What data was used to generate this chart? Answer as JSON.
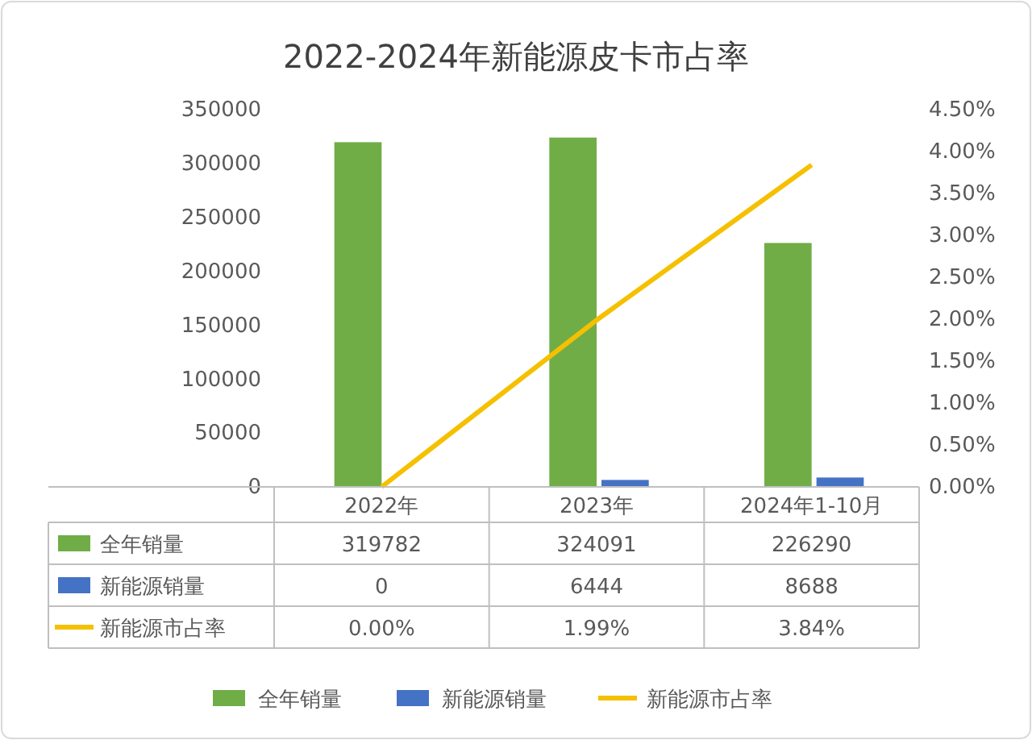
{
  "chart_data": {
    "type": "bar",
    "title": "2022-2024年新能源皮卡市占率",
    "categories": [
      "2022年",
      "2023年",
      "2024年1-10月"
    ],
    "series": [
      {
        "name": "全年销量",
        "color": "#70ad47",
        "values": [
          319782,
          324091,
          226290
        ],
        "value_labels": [
          "319782",
          "324091",
          "226290"
        ]
      },
      {
        "name": "新能源销量",
        "color": "#4472c4",
        "values": [
          0,
          6444,
          8688
        ],
        "value_labels": [
          "0",
          "6444",
          "8688"
        ]
      },
      {
        "name": "新能源市占率",
        "type": "line",
        "axis": "y2",
        "color": "#f5c000",
        "values": [
          0,
          1.99,
          3.84
        ],
        "value_labels": [
          "0.00%",
          "1.99%",
          "3.84%"
        ]
      }
    ],
    "ylim": [
      0,
      350000
    ],
    "yticks": [
      0,
      50000,
      100000,
      150000,
      200000,
      250000,
      300000,
      350000
    ],
    "y2lim": [
      0,
      4.5
    ],
    "y2ticks": [
      {
        "value": 0,
        "label": "0.00%"
      },
      {
        "value": 0.5,
        "label": "0.50%"
      },
      {
        "value": 1,
        "label": "1.00%"
      },
      {
        "value": 1.5,
        "label": "1.50%"
      },
      {
        "value": 2,
        "label": "2.00%"
      },
      {
        "value": 2.5,
        "label": "2.50%"
      },
      {
        "value": 3,
        "label": "3.00%"
      },
      {
        "value": 3.5,
        "label": "3.50%"
      },
      {
        "value": 4,
        "label": "4.00%"
      },
      {
        "value": 4.5,
        "label": "4.50%"
      }
    ],
    "legend": "bottom",
    "marker": "none",
    "line_style": "solid"
  }
}
